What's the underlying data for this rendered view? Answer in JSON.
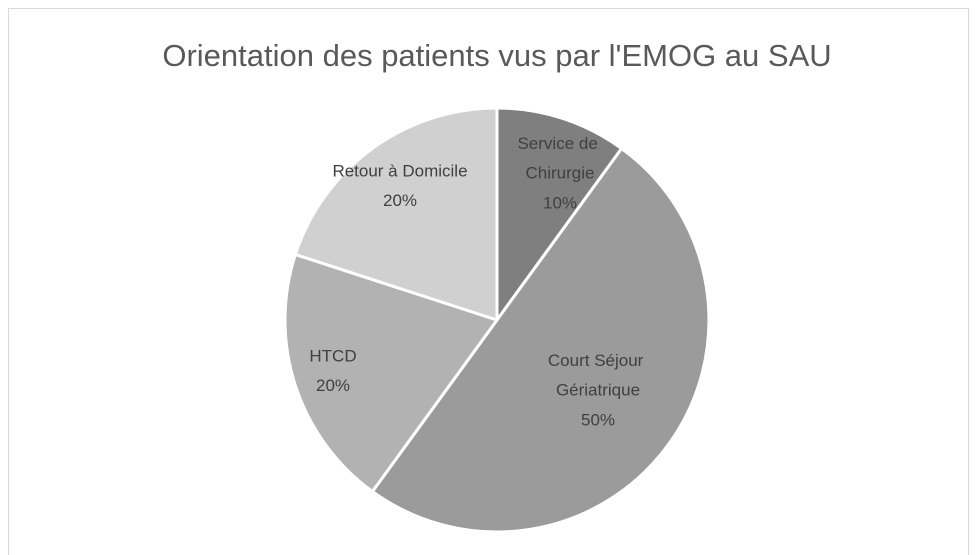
{
  "chart_data": {
    "type": "pie",
    "title": "Orientation des patients vus par l'EMOG au SAU",
    "categories": [
      "Service de Chirurgie",
      "Court Séjour Gériatrique",
      "HTCD",
      "Retour à Domicile"
    ],
    "values": [
      10,
      50,
      20,
      20
    ],
    "value_labels": [
      "10%",
      "50%",
      "20%",
      "20%"
    ],
    "colors": [
      "#7f7f7f",
      "#9b9b9b",
      "#b2b2b2",
      "#d0d0d0"
    ]
  }
}
